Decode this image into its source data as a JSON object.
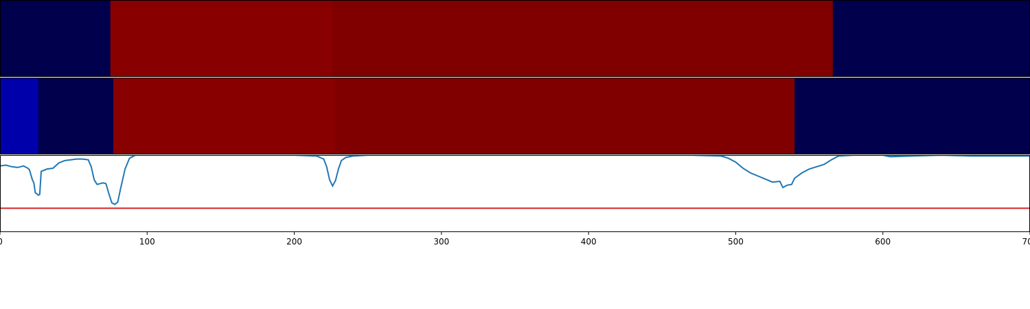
{
  "chart_data": {
    "type": "heatmap",
    "title": "",
    "xlabel": "",
    "ylabel": "",
    "xlim": [
      0,
      700
    ],
    "x_ticks": [
      0,
      100,
      200,
      300,
      400,
      500,
      600,
      700
    ],
    "tracks": [
      {
        "segments": [
          {
            "start": 0,
            "end": 75,
            "color": "#00004c"
          },
          {
            "start": 75,
            "end": 226,
            "color": "#880000"
          },
          {
            "start": 226,
            "end": 566,
            "color": "#800000"
          },
          {
            "start": 566,
            "end": 700,
            "color": "#00004c"
          }
        ]
      },
      {
        "segments": [
          {
            "start": 0,
            "end": 26,
            "color": "#0000aa"
          },
          {
            "start": 26,
            "end": 77,
            "color": "#00004c"
          },
          {
            "start": 77,
            "end": 228,
            "color": "#880000"
          },
          {
            "start": 228,
            "end": 540,
            "color": "#800000"
          },
          {
            "start": 540,
            "end": 700,
            "color": "#00004c"
          }
        ]
      }
    ],
    "line": {
      "color": "#1f77b4",
      "ylim": [
        0,
        1
      ],
      "threshold": 0.31,
      "threshold_color": "#d62728",
      "points": [
        [
          0,
          0.86
        ],
        [
          4,
          0.87
        ],
        [
          8,
          0.85
        ],
        [
          12,
          0.84
        ],
        [
          16,
          0.86
        ],
        [
          19,
          0.83
        ],
        [
          20,
          0.81
        ],
        [
          22,
          0.68
        ],
        [
          23,
          0.64
        ],
        [
          24,
          0.51
        ],
        [
          25,
          0.5
        ],
        [
          26,
          0.48
        ],
        [
          27,
          0.49
        ],
        [
          28,
          0.79
        ],
        [
          32,
          0.82
        ],
        [
          36,
          0.83
        ],
        [
          40,
          0.9
        ],
        [
          44,
          0.93
        ],
        [
          48,
          0.94
        ],
        [
          52,
          0.95
        ],
        [
          56,
          0.95
        ],
        [
          60,
          0.94
        ],
        [
          62,
          0.85
        ],
        [
          64,
          0.68
        ],
        [
          66,
          0.62
        ],
        [
          68,
          0.63
        ],
        [
          70,
          0.64
        ],
        [
          72,
          0.63
        ],
        [
          74,
          0.5
        ],
        [
          76,
          0.38
        ],
        [
          78,
          0.36
        ],
        [
          80,
          0.39
        ],
        [
          82,
          0.57
        ],
        [
          85,
          0.82
        ],
        [
          88,
          0.96
        ],
        [
          92,
          1.0
        ],
        [
          95,
          1.0
        ],
        [
          200,
          1.0
        ],
        [
          215,
          0.99
        ],
        [
          220,
          0.95
        ],
        [
          222,
          0.85
        ],
        [
          224,
          0.68
        ],
        [
          226,
          0.6
        ],
        [
          228,
          0.67
        ],
        [
          230,
          0.82
        ],
        [
          232,
          0.93
        ],
        [
          235,
          0.97
        ],
        [
          240,
          0.99
        ],
        [
          250,
          1.0
        ],
        [
          300,
          1.0
        ],
        [
          470,
          1.0
        ],
        [
          490,
          0.99
        ],
        [
          495,
          0.96
        ],
        [
          500,
          0.91
        ],
        [
          505,
          0.83
        ],
        [
          510,
          0.77
        ],
        [
          515,
          0.73
        ],
        [
          520,
          0.69
        ],
        [
          525,
          0.65
        ],
        [
          530,
          0.66
        ],
        [
          532,
          0.58
        ],
        [
          535,
          0.61
        ],
        [
          538,
          0.62
        ],
        [
          540,
          0.7
        ],
        [
          545,
          0.77
        ],
        [
          550,
          0.82
        ],
        [
          555,
          0.85
        ],
        [
          560,
          0.88
        ],
        [
          565,
          0.94
        ],
        [
          570,
          0.99
        ],
        [
          580,
          1.0
        ],
        [
          600,
          1.0
        ],
        [
          605,
          0.98
        ],
        [
          620,
          0.99
        ],
        [
          640,
          1.0
        ],
        [
          660,
          0.99
        ],
        [
          680,
          0.99
        ],
        [
          700,
          0.99
        ]
      ]
    }
  }
}
